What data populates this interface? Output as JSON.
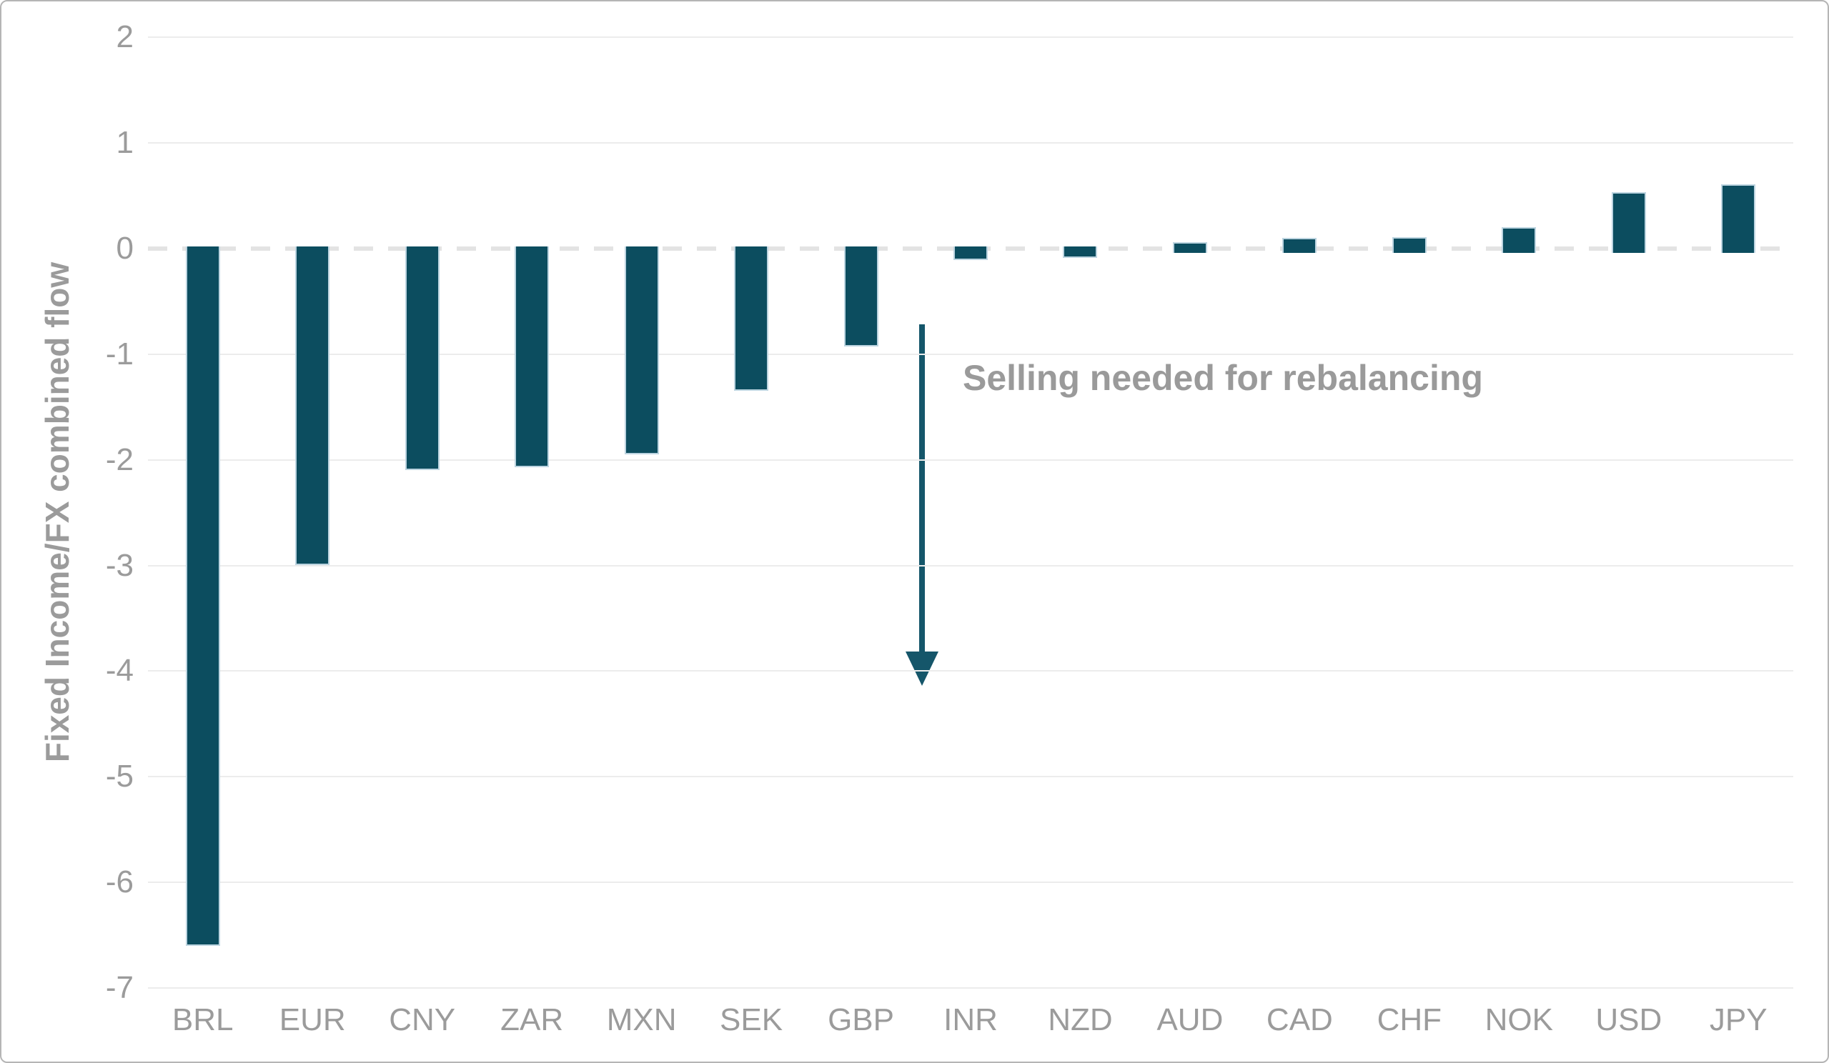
{
  "figure": {
    "background_color": "#ffffff",
    "border_color": "#b5b5b5"
  },
  "chart_data": {
    "type": "bar",
    "title": "",
    "xlabel": "",
    "ylabel": "Fixed Income/FX combined flow",
    "categories": [
      "BRL",
      "EUR",
      "CNY",
      "ZAR",
      "MXN",
      "SEK",
      "GBP",
      "INR",
      "NZD",
      "AUD",
      "CAD",
      "CHF",
      "NOK",
      "USD",
      "JPY"
    ],
    "values": [
      -6.6,
      -3.0,
      -2.1,
      -2.07,
      -1.95,
      -1.35,
      -0.93,
      -0.11,
      -0.09,
      0.08,
      0.12,
      0.13,
      0.22,
      0.55,
      0.63
    ],
    "ylim": [
      -7,
      2
    ],
    "yticks": [
      2,
      1,
      0,
      -1,
      -2,
      -3,
      -4,
      -5,
      -6,
      -7
    ],
    "grid": "horizontal-light",
    "zero_line_style": "dashed",
    "legend_position": "none",
    "bar_color": "#0c4d5f",
    "bar_edge_color": "#cfe3ec",
    "gridline_color": "#ececec",
    "zero_dash_color": "#e3e3e3",
    "axis_text_color": "#9b9b9b",
    "annotation": {
      "text": "Selling needed for rebalancing",
      "text_color": "#9a9a9a",
      "arrow_color": "#15566a",
      "arrow_direction": "down"
    }
  }
}
